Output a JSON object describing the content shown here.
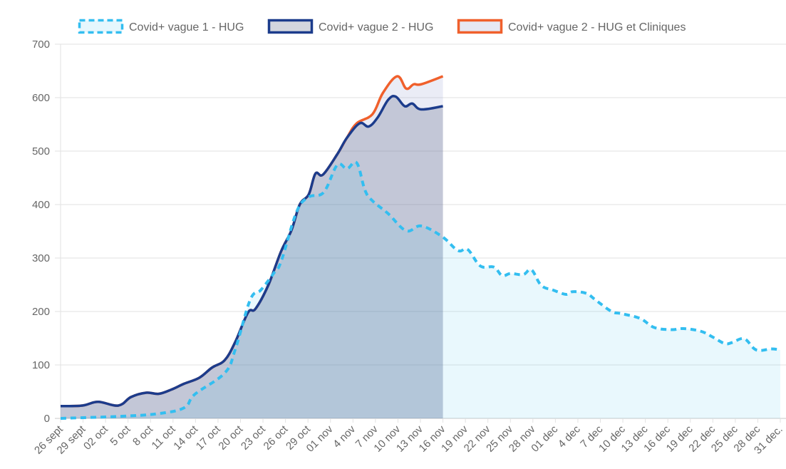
{
  "chart_data": {
    "type": "area",
    "title": "",
    "xlabel": "",
    "ylabel": "",
    "ylim": [
      0,
      700
    ],
    "yticks": [
      "0",
      "100",
      "200",
      "300",
      "400",
      "500",
      "600",
      "700"
    ],
    "x_unit": "days since 26 sept",
    "xlim": [
      0,
      96
    ],
    "xticks": [
      "26 sept",
      "29 sept",
      "02 oct",
      "5 oct",
      "8 oct",
      "11 oct",
      "14 oct",
      "17 oct",
      "20 oct",
      "23 oct",
      "26 oct",
      "29 oct",
      "01 nov",
      "4 nov",
      "7 nov",
      "10 nov",
      "13 nov",
      "16 nov",
      "19 nov",
      "22 nov",
      "25 nov",
      "28 nov",
      "01 dec",
      "4 dec",
      "7 dec",
      "10 dec",
      "13 dec",
      "16 dec",
      "19 dec",
      "22 dec",
      "25 dec",
      "28 dec",
      "31 dec."
    ],
    "grid": true,
    "legend_position": "top-center",
    "series": [
      {
        "name": "Covid+ vague 1 - HUG",
        "color": "#33bef0",
        "fill": "rgba(51,190,240,0.11)",
        "style": "dashed",
        "x": [
          0,
          8.2,
          13.1,
          16.5,
          17.9,
          21.9,
          23.3,
          25.3,
          26.7,
          28.4,
          29.4,
          31.5,
          33.1,
          35.1,
          36.9,
          38.2,
          39.5,
          40.6,
          41.6,
          43.7,
          46.1,
          48.1,
          50.9,
          53.0,
          54.3,
          56.0,
          57.8,
          58.9,
          60.0,
          61.7,
          62.8,
          64.1,
          65.7,
          67.4,
          68.3,
          70.1,
          71.5,
          73.5,
          74.8,
          77.3,
          79.2,
          81.5,
          83.1,
          85.4,
          87.0,
          88.6,
          89.6,
          91.2,
          92.8,
          94.8,
          96
        ],
        "y": [
          0,
          4,
          9,
          20,
          45,
          85,
          129,
          222,
          240,
          271,
          293,
          387,
          414,
          423,
          474,
          467,
          478,
          427,
          407,
          383,
          351,
          360,
          340,
          314,
          316,
          285,
          283,
          267,
          271,
          269,
          278,
          249,
          240,
          232,
          237,
          234,
          220,
          200,
          196,
          187,
          170,
          166,
          168,
          163,
          152,
          140,
          142,
          149,
          128,
          130,
          128
        ]
      },
      {
        "name": "Covid+ vague 2 - HUG",
        "color": "#1c3c8c",
        "fill": "rgba(40,55,95,0.2)",
        "style": "solid",
        "x": [
          0,
          2.9,
          5.0,
          7.7,
          9.4,
          11.4,
          13.1,
          14.8,
          16.5,
          18.5,
          20.2,
          21.9,
          23.3,
          25.0,
          26.0,
          27.7,
          29.4,
          30.8,
          31.9,
          33.1,
          34.0,
          35.0,
          36.9,
          38.2,
          39.9,
          41.1,
          42.3,
          43.7,
          44.7,
          45.9,
          46.9,
          48.1,
          51
        ],
        "y": [
          23,
          24,
          31,
          24,
          40,
          48,
          46,
          54,
          65,
          76,
          95,
          109,
          143,
          198,
          205,
          249,
          312,
          352,
          400,
          419,
          458,
          456,
          494,
          525,
          552,
          546,
          563,
          596,
          602,
          584,
          589,
          578,
          584
        ]
      },
      {
        "name": "Covid+ vague 2 - HUG et Cliniques",
        "color": "#f0602c",
        "fill": "rgba(160,170,215,0.22)",
        "style": "solid",
        "x": [
          0,
          2.9,
          5.0,
          7.7,
          9.4,
          11.4,
          13.1,
          14.8,
          16.5,
          18.5,
          20.2,
          21.9,
          23.3,
          25.0,
          26.0,
          27.7,
          29.4,
          30.8,
          31.9,
          33.1,
          34.0,
          35.0,
          36.9,
          38.2,
          39.5,
          41.6,
          43.0,
          44.9,
          46.1,
          47.1,
          48.1,
          51
        ],
        "y": [
          23,
          24,
          31,
          24,
          40,
          48,
          46,
          54,
          65,
          76,
          95,
          109,
          143,
          198,
          205,
          249,
          312,
          352,
          400,
          419,
          458,
          456,
          494,
          525,
          552,
          569,
          609,
          640,
          617,
          625,
          625,
          640
        ]
      }
    ]
  }
}
